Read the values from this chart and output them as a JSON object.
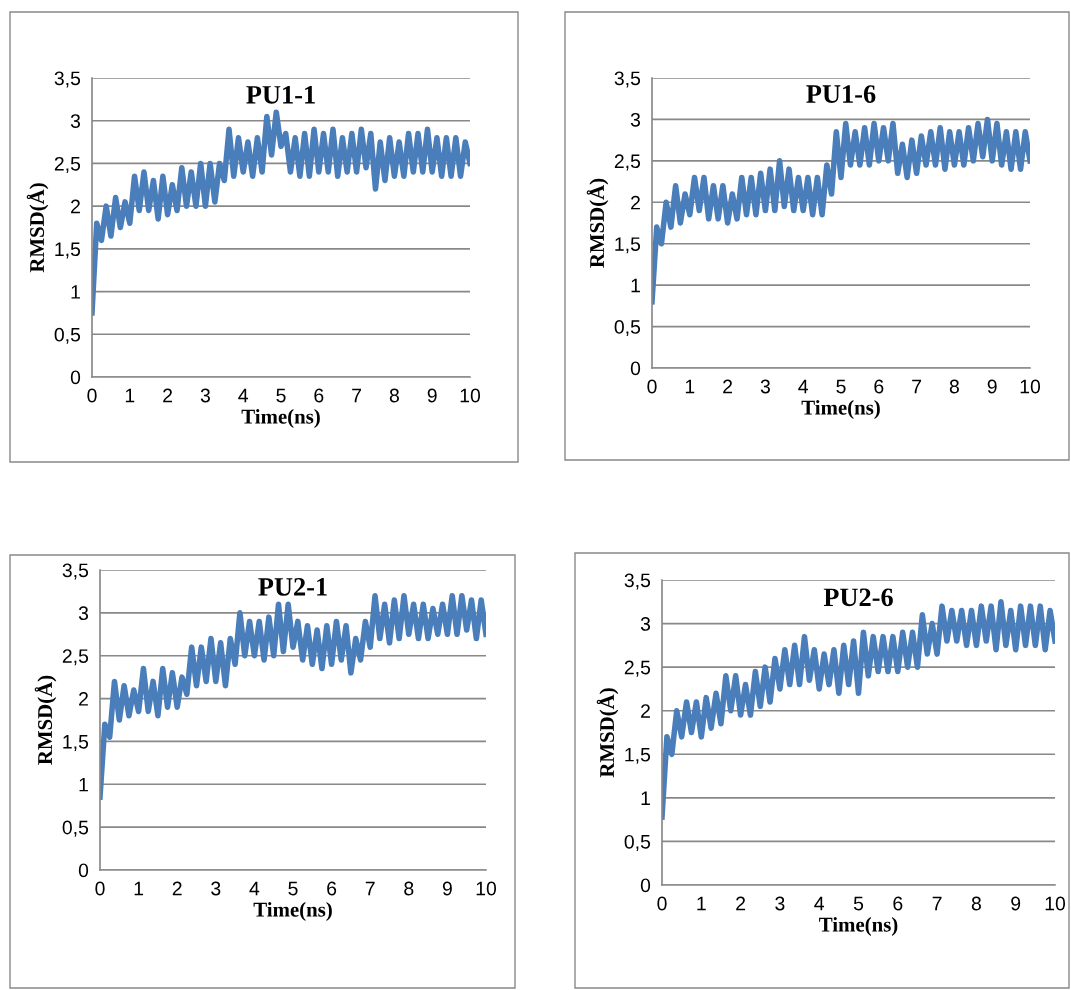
{
  "chart_data": [
    {
      "type": "line",
      "title": "PU1-1",
      "xlabel": "Time(ns)",
      "ylabel": "RMSD(Å)",
      "grid": "y",
      "marker": "none",
      "line_style": "solid",
      "xlim": [
        0,
        10
      ],
      "xticks": [
        0,
        1,
        2,
        3,
        4,
        5,
        6,
        7,
        8,
        9,
        10
      ],
      "ylim": [
        0,
        3.5
      ],
      "yticks": [
        0,
        {
          "value": 0.5,
          "label": "0,5"
        },
        1,
        {
          "value": 1.5,
          "label": "1,5"
        },
        2,
        {
          "value": 2.5,
          "label": "2,5"
        },
        3,
        {
          "value": 3.5,
          "label": "3,5"
        }
      ],
      "x": [
        0,
        0.125,
        0.25,
        0.375,
        0.5,
        0.625,
        0.75,
        0.875,
        1,
        1.125,
        1.25,
        1.375,
        1.5,
        1.625,
        1.75,
        1.875,
        2,
        2.125,
        2.25,
        2.375,
        2.5,
        2.625,
        2.75,
        2.875,
        3,
        3.125,
        3.25,
        3.375,
        3.5,
        3.625,
        3.75,
        3.875,
        4,
        4.125,
        4.25,
        4.375,
        4.5,
        4.625,
        4.75,
        4.875,
        5,
        5.125,
        5.25,
        5.375,
        5.5,
        5.625,
        5.75,
        5.875,
        6,
        6.125,
        6.25,
        6.375,
        6.5,
        6.625,
        6.75,
        6.875,
        7,
        7.125,
        7.25,
        7.375,
        7.5,
        7.625,
        7.75,
        7.875,
        8,
        8.125,
        8.25,
        8.375,
        8.5,
        8.625,
        8.75,
        8.875,
        9,
        9.125,
        9.25,
        9.375,
        9.5,
        9.625,
        9.75,
        9.875,
        10
      ],
      "series": [
        {
          "color": "#4a7ebb",
          "values": [
            0.75,
            1.8,
            1.6,
            2.0,
            1.65,
            2.1,
            1.75,
            2.05,
            1.8,
            2.35,
            1.95,
            2.4,
            1.95,
            2.3,
            1.85,
            2.35,
            1.9,
            2.25,
            1.95,
            2.45,
            2.0,
            2.4,
            2.0,
            2.5,
            2.0,
            2.5,
            2.05,
            2.5,
            2.3,
            2.9,
            2.35,
            2.8,
            2.4,
            2.75,
            2.35,
            2.8,
            2.4,
            3.05,
            2.6,
            3.1,
            2.7,
            2.85,
            2.4,
            2.8,
            2.35,
            2.85,
            2.35,
            2.9,
            2.4,
            2.85,
            2.4,
            2.9,
            2.35,
            2.8,
            2.4,
            2.85,
            2.4,
            2.9,
            2.45,
            2.85,
            2.2,
            2.75,
            2.3,
            2.8,
            2.35,
            2.75,
            2.35,
            2.85,
            2.4,
            2.85,
            2.4,
            2.9,
            2.4,
            2.8,
            2.35,
            2.8,
            2.35,
            2.8,
            2.35,
            2.75,
            2.5
          ]
        }
      ]
    },
    {
      "type": "line",
      "title": "PU1-6",
      "xlabel": "Time(ns)",
      "ylabel": "RMSD(Å)",
      "grid": "y",
      "marker": "none",
      "line_style": "solid",
      "xlim": [
        0,
        10
      ],
      "xticks": [
        0,
        1,
        2,
        3,
        4,
        5,
        6,
        7,
        8,
        9,
        10
      ],
      "ylim": [
        0,
        3.5
      ],
      "yticks": [
        0,
        {
          "value": 0.5,
          "label": "0,5"
        },
        1,
        {
          "value": 1.5,
          "label": "1,5"
        },
        2,
        {
          "value": 2.5,
          "label": "2,5"
        },
        3,
        {
          "value": 3.5,
          "label": "3,5"
        }
      ],
      "x": [
        0,
        0.125,
        0.25,
        0.375,
        0.5,
        0.625,
        0.75,
        0.875,
        1,
        1.125,
        1.25,
        1.375,
        1.5,
        1.625,
        1.75,
        1.875,
        2,
        2.125,
        2.25,
        2.375,
        2.5,
        2.625,
        2.75,
        2.875,
        3,
        3.125,
        3.25,
        3.375,
        3.5,
        3.625,
        3.75,
        3.875,
        4,
        4.125,
        4.25,
        4.375,
        4.5,
        4.625,
        4.75,
        4.875,
        5,
        5.125,
        5.25,
        5.375,
        5.5,
        5.625,
        5.75,
        5.875,
        6,
        6.125,
        6.25,
        6.375,
        6.5,
        6.625,
        6.75,
        6.875,
        7,
        7.125,
        7.25,
        7.375,
        7.5,
        7.625,
        7.75,
        7.875,
        8,
        8.125,
        8.25,
        8.375,
        8.5,
        8.625,
        8.75,
        8.875,
        9,
        9.125,
        9.25,
        9.375,
        9.5,
        9.625,
        9.75,
        9.875,
        10
      ],
      "series": [
        {
          "color": "#4a7ebb",
          "values": [
            0.8,
            1.7,
            1.5,
            2.0,
            1.7,
            2.2,
            1.75,
            2.1,
            1.85,
            2.3,
            1.9,
            2.3,
            1.8,
            2.2,
            1.8,
            2.2,
            1.75,
            2.1,
            1.8,
            2.3,
            1.85,
            2.3,
            1.85,
            2.35,
            1.9,
            2.4,
            1.9,
            2.5,
            1.95,
            2.4,
            1.9,
            2.3,
            1.9,
            2.3,
            1.85,
            2.3,
            1.85,
            2.45,
            2.1,
            2.85,
            2.3,
            2.95,
            2.45,
            2.85,
            2.45,
            2.9,
            2.45,
            2.95,
            2.5,
            2.9,
            2.5,
            2.95,
            2.35,
            2.7,
            2.3,
            2.75,
            2.35,
            2.8,
            2.45,
            2.85,
            2.45,
            2.9,
            2.4,
            2.85,
            2.45,
            2.85,
            2.45,
            2.9,
            2.5,
            2.95,
            2.55,
            3.0,
            2.5,
            2.95,
            2.45,
            2.85,
            2.4,
            2.85,
            2.4,
            2.85,
            2.5
          ]
        }
      ]
    },
    {
      "type": "line",
      "title": "PU2-1",
      "xlabel": "Time(ns)",
      "ylabel": "RMSD(Å)",
      "grid": "y",
      "marker": "none",
      "line_style": "solid",
      "xlim": [
        0,
        10
      ],
      "xticks": [
        0,
        1,
        2,
        3,
        4,
        5,
        6,
        7,
        8,
        9,
        10
      ],
      "ylim": [
        0,
        3.5
      ],
      "yticks": [
        0,
        {
          "value": 0.5,
          "label": "0,5"
        },
        1,
        {
          "value": 1.5,
          "label": "1,5"
        },
        2,
        {
          "value": 2.5,
          "label": "2,5"
        },
        3,
        {
          "value": 3.5,
          "label": "3,5"
        }
      ],
      "x": [
        0,
        0.125,
        0.25,
        0.375,
        0.5,
        0.625,
        0.75,
        0.875,
        1,
        1.125,
        1.25,
        1.375,
        1.5,
        1.625,
        1.75,
        1.875,
        2,
        2.125,
        2.25,
        2.375,
        2.5,
        2.625,
        2.75,
        2.875,
        3,
        3.125,
        3.25,
        3.375,
        3.5,
        3.625,
        3.75,
        3.875,
        4,
        4.125,
        4.25,
        4.375,
        4.5,
        4.625,
        4.75,
        4.875,
        5,
        5.125,
        5.25,
        5.375,
        5.5,
        5.625,
        5.75,
        5.875,
        6,
        6.125,
        6.25,
        6.375,
        6.5,
        6.625,
        6.75,
        6.875,
        7,
        7.125,
        7.25,
        7.375,
        7.5,
        7.625,
        7.75,
        7.875,
        8,
        8.125,
        8.25,
        8.375,
        8.5,
        8.625,
        8.75,
        8.875,
        9,
        9.125,
        9.25,
        9.375,
        9.5,
        9.625,
        9.75,
        9.875,
        10
      ],
      "series": [
        {
          "color": "#4a7ebb",
          "values": [
            0.85,
            1.7,
            1.55,
            2.2,
            1.75,
            2.15,
            1.8,
            2.1,
            1.85,
            2.35,
            1.85,
            2.2,
            1.8,
            2.35,
            1.9,
            2.3,
            1.9,
            2.25,
            2.05,
            2.6,
            2.15,
            2.6,
            2.2,
            2.7,
            2.2,
            2.65,
            2.15,
            2.7,
            2.4,
            3.0,
            2.5,
            2.9,
            2.5,
            2.9,
            2.45,
            2.95,
            2.5,
            3.1,
            2.55,
            3.1,
            2.6,
            2.9,
            2.45,
            2.85,
            2.4,
            2.8,
            2.35,
            2.85,
            2.4,
            2.9,
            2.45,
            2.85,
            2.3,
            2.7,
            2.45,
            2.9,
            2.6,
            3.2,
            2.7,
            3.1,
            2.65,
            3.15,
            2.7,
            3.2,
            2.75,
            3.1,
            2.7,
            3.1,
            2.7,
            3.05,
            2.75,
            3.1,
            2.75,
            3.2,
            2.75,
            3.2,
            2.8,
            3.15,
            2.7,
            3.15,
            2.75
          ]
        }
      ]
    },
    {
      "type": "line",
      "title": "PU2-6",
      "xlabel": "Time(ns)",
      "ylabel": "RMSD(Å)",
      "grid": "y",
      "marker": "none",
      "line_style": "solid",
      "xlim": [
        0,
        10
      ],
      "xticks": [
        0,
        1,
        2,
        3,
        4,
        5,
        6,
        7,
        8,
        9,
        10
      ],
      "ylim": [
        0,
        3.5
      ],
      "yticks": [
        0,
        {
          "value": 0.5,
          "label": "0,5"
        },
        1,
        {
          "value": 1.5,
          "label": "1,5"
        },
        2,
        {
          "value": 2.5,
          "label": "2,5"
        },
        3,
        {
          "value": 3.5,
          "label": "3,5"
        }
      ],
      "x": [
        0,
        0.125,
        0.25,
        0.375,
        0.5,
        0.625,
        0.75,
        0.875,
        1,
        1.125,
        1.25,
        1.375,
        1.5,
        1.625,
        1.75,
        1.875,
        2,
        2.125,
        2.25,
        2.375,
        2.5,
        2.625,
        2.75,
        2.875,
        3,
        3.125,
        3.25,
        3.375,
        3.5,
        3.625,
        3.75,
        3.875,
        4,
        4.125,
        4.25,
        4.375,
        4.5,
        4.625,
        4.75,
        4.875,
        5,
        5.125,
        5.25,
        5.375,
        5.5,
        5.625,
        5.75,
        5.875,
        6,
        6.125,
        6.25,
        6.375,
        6.5,
        6.625,
        6.75,
        6.875,
        7,
        7.125,
        7.25,
        7.375,
        7.5,
        7.625,
        7.75,
        7.875,
        8,
        8.125,
        8.25,
        8.375,
        8.5,
        8.625,
        8.75,
        8.875,
        9,
        9.125,
        9.25,
        9.375,
        9.5,
        9.625,
        9.75,
        9.875,
        10
      ],
      "series": [
        {
          "color": "#4a7ebb",
          "values": [
            0.78,
            1.7,
            1.5,
            2.0,
            1.7,
            2.1,
            1.75,
            2.1,
            1.7,
            2.15,
            1.8,
            2.2,
            1.85,
            2.4,
            2.0,
            2.4,
            1.95,
            2.3,
            1.95,
            2.45,
            2.05,
            2.5,
            2.1,
            2.6,
            2.25,
            2.7,
            2.3,
            2.75,
            2.3,
            2.85,
            2.35,
            2.7,
            2.25,
            2.65,
            2.3,
            2.7,
            2.2,
            2.75,
            2.3,
            2.8,
            2.2,
            2.9,
            2.4,
            2.85,
            2.45,
            2.85,
            2.45,
            2.85,
            2.45,
            2.9,
            2.5,
            2.9,
            2.5,
            3.1,
            2.65,
            3.0,
            2.65,
            3.2,
            2.8,
            3.15,
            2.8,
            3.15,
            2.75,
            3.15,
            2.75,
            3.2,
            2.8,
            3.2,
            2.7,
            3.25,
            2.75,
            3.15,
            2.7,
            3.2,
            2.75,
            3.2,
            2.75,
            3.2,
            2.7,
            3.15,
            2.8
          ]
        }
      ]
    }
  ]
}
